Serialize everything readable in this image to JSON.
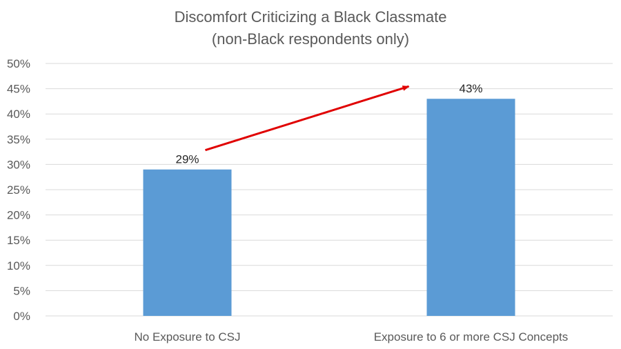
{
  "chart_data": {
    "type": "bar",
    "title_lines": [
      "Discomfort Criticizing a Black Classmate",
      "(non-Black respondents only)"
    ],
    "categories": [
      "No Exposure to CSJ",
      "Exposure to 6 or more CSJ Concepts"
    ],
    "values": [
      29,
      43
    ],
    "data_labels": [
      "29%",
      "43%"
    ],
    "yticks": [
      "0%",
      "5%",
      "10%",
      "15%",
      "20%",
      "25%",
      "30%",
      "35%",
      "40%",
      "45%",
      "50%"
    ],
    "ylim": [
      0,
      50
    ],
    "xlabel": "",
    "ylabel": "",
    "grid": true,
    "legend": "none",
    "annotation": "arrow from first bar label to second bar label",
    "colors": {
      "bar": "#5b9bd5",
      "arrow": "#e00000",
      "grid": "#d9d9d9"
    }
  }
}
